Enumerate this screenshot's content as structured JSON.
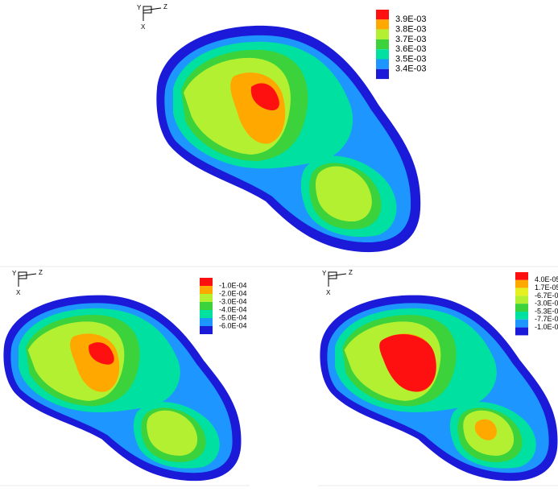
{
  "panels": [
    {
      "axes": {
        "y": "Y",
        "z": "Z",
        "x": "X"
      },
      "legend": [
        "3.9E-03",
        "3.8E-03",
        "3.7E-03",
        "3.6E-03",
        "3.5E-03",
        "3.4E-03"
      ]
    },
    {
      "axes": {
        "y": "Y",
        "z": "Z",
        "x": "X"
      },
      "legend": [
        "-1.0E-04",
        "-2.0E-04",
        "-3.0E-04",
        "-4.0E-04",
        "-5.0E-04",
        "-6.0E-04"
      ]
    },
    {
      "axes": {
        "y": "Y",
        "z": "Z",
        "x": "X"
      },
      "legend": [
        "4.0E-05",
        "1.7E-05",
        "-6.7E-06",
        "-3.0E-05",
        "-5.3E-05",
        "-7.7E-05",
        "-1.0E-04"
      ]
    }
  ]
}
